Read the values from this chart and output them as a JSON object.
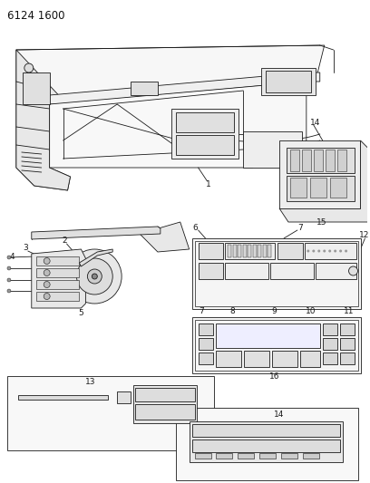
{
  "title": "6124 1600",
  "bg_color": "#ffffff",
  "line_color": "#1a1a1a",
  "fill_light": "#f0f0f0",
  "fill_med": "#e0e0e0",
  "fill_dark": "#cccccc",
  "label_fontsize": 6.0,
  "title_fontsize": 8.5,
  "lw_main": 0.6,
  "lw_thick": 1.0
}
